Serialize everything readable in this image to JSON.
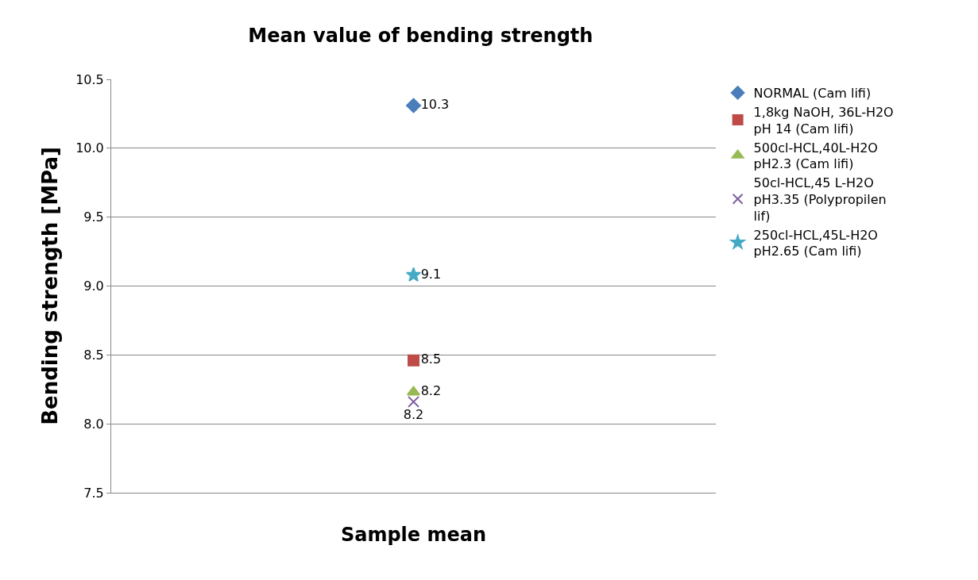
{
  "chart_data": {
    "type": "scatter",
    "title": "Mean value of bending strength",
    "xlabel": "Sample mean",
    "ylabel": "Bending strength [MPa]",
    "categories": [
      null
    ],
    "series": [
      {
        "name": "NORMAL (Cam lifi)",
        "color": "#4a7ebb",
        "values": [
          10.31
        ],
        "value_labels": [
          "10.3"
        ],
        "marker": "diamond"
      },
      {
        "name": "1,8kg NaOH, 36L-H2O pH 14 (Cam lifi)",
        "color": "#be4b48",
        "values": [
          8.46
        ],
        "value_labels": [
          "8.5"
        ],
        "marker": "square"
      },
      {
        "name": "500cl-HCL,40L-H2O pH2.3 (Cam lifi)",
        "color": "#98b954",
        "values": [
          8.23
        ],
        "value_labels": [
          "8.2"
        ],
        "marker": "triangle"
      },
      {
        "name": "50cl-HCL,45 L-H2O pH3.35 (Polypropilen lif)",
        "color": "#7d60a0",
        "values": [
          8.16
        ],
        "value_labels": [
          "8.2"
        ],
        "marker": "cross"
      },
      {
        "name": "250cl-HCL,45L-H2O pH2.65 (Cam lifi)",
        "color": "#46aac5",
        "values": [
          9.08
        ],
        "value_labels": [
          "9.1"
        ],
        "marker": "star"
      }
    ],
    "ylim": [
      7.5,
      10.5
    ],
    "yticks": [
      {
        "value": 7.5,
        "label": "7.5"
      },
      {
        "value": 8,
        "label": "8.0"
      },
      {
        "value": 8.5,
        "label": "8.5"
      },
      {
        "value": 9,
        "label": "9.0"
      },
      {
        "value": 9.5,
        "label": "9.5"
      },
      {
        "value": 10,
        "label": "10.0"
      },
      {
        "value": 10.5,
        "label": "10.5"
      }
    ],
    "grid": "y",
    "legend": "right"
  }
}
